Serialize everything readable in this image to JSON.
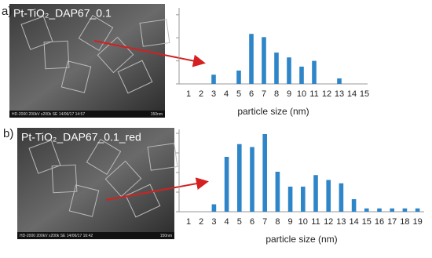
{
  "chart_data": [
    {
      "type": "bar",
      "panel_label": "a)",
      "image_label": "Pt-TiO₂_DAP67_0.1",
      "image_caption": "HD-2000 200kV x200k SE 14/06/17 14:57",
      "scale_label": "150nm",
      "xlabel": "particle size (nm)",
      "color": "#2e86c8",
      "categories": [
        "1",
        "2",
        "3",
        "4",
        "5",
        "6",
        "7",
        "8",
        "9",
        "10",
        "11",
        "12",
        "13",
        "14",
        "15"
      ],
      "values": [
        0,
        0,
        0.4,
        0,
        0.58,
        2.17,
        2.03,
        1.36,
        1.15,
        0.75,
        1.0,
        0,
        0.24,
        0,
        0
      ],
      "ylim": [
        0,
        3.3
      ],
      "yticks": [
        0,
        1,
        2,
        3
      ]
    },
    {
      "type": "bar",
      "panel_label": "b)",
      "image_label": "Pt-TiO₂_DAP67_0.1_red",
      "image_caption": "HD-2000 200kV x200k SE 14/06/17 16:42",
      "scale_label": "150nm",
      "xlabel": "particle size (nm)",
      "color": "#2e86c8",
      "categories": [
        "1",
        "2",
        "3",
        "4",
        "5",
        "6",
        "7",
        "8",
        "9",
        "10",
        "11",
        "12",
        "13",
        "14",
        "15",
        "16",
        "17",
        "18",
        "19"
      ],
      "values": [
        0,
        0,
        0.38,
        2.8,
        3.45,
        3.3,
        3.96,
        2.04,
        1.28,
        1.28,
        1.87,
        1.62,
        1.45,
        0.64,
        0.17,
        0.17,
        0.17,
        0.17,
        0.17
      ],
      "ylim": [
        0,
        4.2
      ],
      "yticks": [
        0,
        1,
        2,
        3,
        4
      ]
    }
  ]
}
